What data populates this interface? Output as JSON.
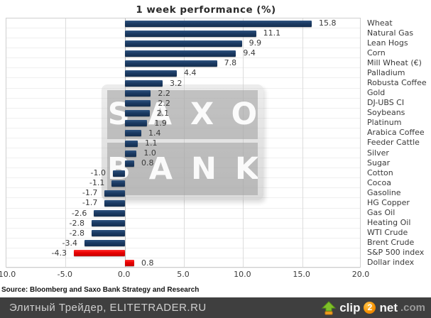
{
  "title": "1 week performance (%)",
  "chart_data": {
    "type": "bar",
    "orientation": "horizontal",
    "title": "1 week performance (%)",
    "xlabel": "",
    "ylabel": "",
    "xlim": [
      -10.0,
      20.0
    ],
    "x_tick_labels": [
      "-10.0",
      "-5.0",
      "0.0",
      "5.0",
      "10.0",
      "15.0",
      "20.0"
    ],
    "grid": true,
    "legend_position": "none",
    "categories": [
      "Wheat",
      "Natural Gas",
      "Lean Hogs",
      "Corn",
      "Mill Wheat (€)",
      "Palladium",
      "Robusta Coffee",
      "Gold",
      "DJ-UBS CI",
      "Soybeans",
      "Platinum",
      "Arabica Coffee",
      "Feeder Cattle",
      "Silver",
      "Sugar",
      "Cotton",
      "Cocoa",
      "Gasoline",
      "HG Copper",
      "Gas Oil",
      "Heating Oil",
      "WTI Crude",
      "Brent Crude",
      "S&P 500 index",
      "Dollar index"
    ],
    "values": [
      15.8,
      11.1,
      9.9,
      9.4,
      7.8,
      4.4,
      3.2,
      2.2,
      2.2,
      2.1,
      1.9,
      1.4,
      1.1,
      1.0,
      0.8,
      -1.0,
      -1.1,
      -1.7,
      -1.7,
      -2.6,
      -2.8,
      -2.8,
      -3.4,
      -4.3,
      0.8
    ],
    "value_labels": [
      "15.8",
      "11.1",
      "9.9",
      "9.4",
      "7.8",
      "4.4",
      "3.2",
      "2.2",
      "2.2",
      "2.1",
      "1.9",
      "1.4",
      "1.1",
      "1.0",
      "0.8",
      "-1.0",
      "-1.1",
      "-1.7",
      "-1.7",
      "-2.6",
      "-2.8",
      "-2.8",
      "-3.4",
      "-4.3",
      "0.8"
    ],
    "highlight_indices": [
      23,
      24
    ],
    "colors": {
      "bar": "#1b3a63",
      "bar_highlight": "#e90000"
    }
  },
  "watermark": {
    "line1": "SAXO",
    "line2": "BANK"
  },
  "source_note": "Source: Bloomberg and Saxo Bank Strategy and Research",
  "footer": {
    "site_label": "Элитный Трейдер, ELITETRADER.RU",
    "clip2net": {
      "word1": "clip",
      "badge": "2",
      "word2": "net",
      "tld": ".com"
    }
  }
}
